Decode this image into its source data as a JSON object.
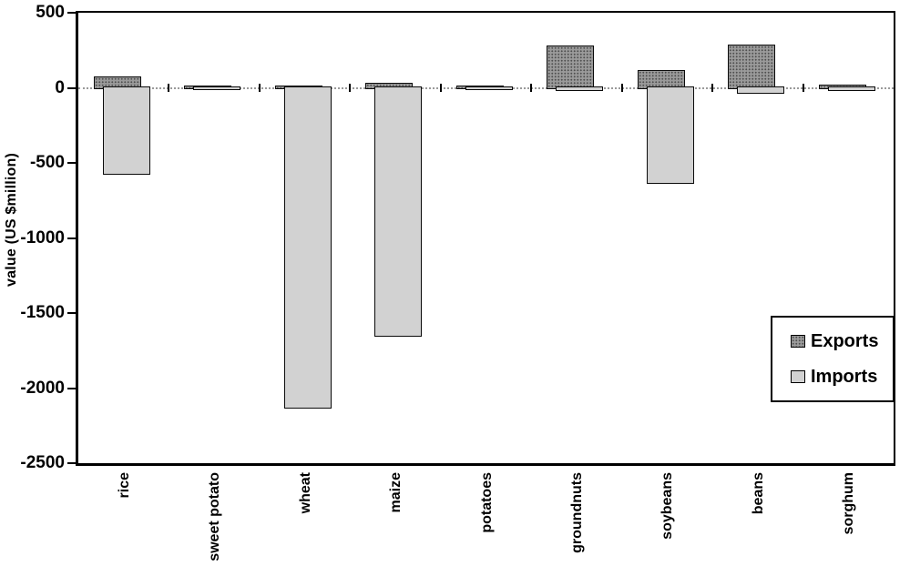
{
  "chart_data": {
    "type": "bar",
    "title": "",
    "xlabel": "",
    "ylabel": "value (US $million)",
    "categories": [
      "rice",
      "sweet potato",
      "wheat",
      "maize",
      "potatoes",
      "groundnuts",
      "soybeans",
      "beans",
      "sorghum"
    ],
    "series": [
      {
        "name": "Exports",
        "color": "#9a9a9a",
        "values": [
          65,
          8,
          5,
          25,
          8,
          270,
          110,
          280,
          15
        ]
      },
      {
        "name": "Imports",
        "color": "#d2d2d2",
        "values": [
          -570,
          -5,
          -2130,
          -1650,
          -5,
          -15,
          -630,
          -30,
          -10
        ]
      }
    ],
    "ylim": [
      -2500,
      500
    ],
    "yticks": [
      500,
      0,
      -500,
      -1000,
      -1500,
      -2000,
      -2500
    ],
    "grid": false,
    "legend_position": "middle-right",
    "bar_style": "overlapped",
    "category_axis_position": "zero"
  }
}
